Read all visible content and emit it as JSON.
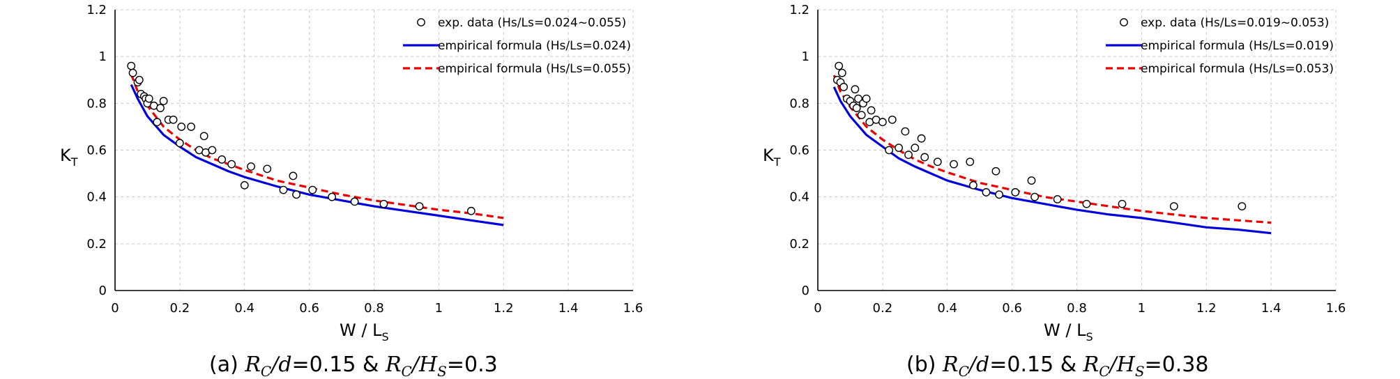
{
  "chart_data": [
    {
      "type": "scatter",
      "xlabel": "W / L",
      "xlabel_sub": "S",
      "ylabel": "K",
      "ylabel_sub": "T",
      "xlim": [
        0,
        1.6
      ],
      "ylim": [
        0,
        1.2
      ],
      "xticks": [
        "0",
        "0.2",
        "0.4",
        "0.6",
        "0.8",
        "1",
        "1.2",
        "1.4",
        "1.6"
      ],
      "yticks": [
        "0",
        "0.2",
        "0.4",
        "0.6",
        "0.8",
        "1",
        "1.2"
      ],
      "grid": true,
      "legend_position": "top-right",
      "caption": {
        "prefix": "(a) ",
        "m1": "R",
        "m1_sub": "C",
        "m2": "/d",
        "mid": "=0.15 & ",
        "m3": "R",
        "m3_sub": "C",
        "m4": "/H",
        "m4_sub": "S",
        "suffix": "=0.3"
      },
      "series": [
        {
          "name": "exp. data (Hs/Ls=0.024~0.055)",
          "kind": "points",
          "color": "#000000",
          "points": [
            [
              0.05,
              0.96
            ],
            [
              0.055,
              0.93
            ],
            [
              0.07,
              0.89
            ],
            [
              0.075,
              0.9
            ],
            [
              0.08,
              0.84
            ],
            [
              0.09,
              0.83
            ],
            [
              0.095,
              0.82
            ],
            [
              0.1,
              0.8
            ],
            [
              0.105,
              0.82
            ],
            [
              0.12,
              0.79
            ],
            [
              0.13,
              0.72
            ],
            [
              0.14,
              0.78
            ],
            [
              0.15,
              0.81
            ],
            [
              0.165,
              0.73
            ],
            [
              0.18,
              0.73
            ],
            [
              0.2,
              0.63
            ],
            [
              0.205,
              0.7
            ],
            [
              0.235,
              0.7
            ],
            [
              0.26,
              0.6
            ],
            [
              0.275,
              0.66
            ],
            [
              0.28,
              0.59
            ],
            [
              0.3,
              0.6
            ],
            [
              0.33,
              0.56
            ],
            [
              0.36,
              0.54
            ],
            [
              0.4,
              0.45
            ],
            [
              0.42,
              0.53
            ],
            [
              0.47,
              0.52
            ],
            [
              0.52,
              0.43
            ],
            [
              0.55,
              0.49
            ],
            [
              0.56,
              0.41
            ],
            [
              0.61,
              0.43
            ],
            [
              0.67,
              0.4
            ],
            [
              0.74,
              0.38
            ],
            [
              0.83,
              0.37
            ],
            [
              0.94,
              0.36
            ],
            [
              1.1,
              0.34
            ]
          ]
        },
        {
          "name": "empirical formula (Hs/Ls=0.024)",
          "kind": "line",
          "color": "#0000dd",
          "dash": false,
          "points": [
            [
              0.05,
              0.88
            ],
            [
              0.07,
              0.82
            ],
            [
              0.1,
              0.745
            ],
            [
              0.15,
              0.665
            ],
            [
              0.2,
              0.615
            ],
            [
              0.25,
              0.57
            ],
            [
              0.3,
              0.54
            ],
            [
              0.35,
              0.51
            ],
            [
              0.4,
              0.485
            ],
            [
              0.5,
              0.445
            ],
            [
              0.6,
              0.41
            ],
            [
              0.7,
              0.385
            ],
            [
              0.8,
              0.36
            ],
            [
              0.9,
              0.34
            ],
            [
              1.0,
              0.32
            ],
            [
              1.1,
              0.3
            ],
            [
              1.2,
              0.28
            ]
          ]
        },
        {
          "name": "empirical formula (Hs/Ls=0.055)",
          "kind": "line",
          "color": "#ee0000",
          "dash": true,
          "points": [
            [
              0.05,
              0.925
            ],
            [
              0.07,
              0.85
            ],
            [
              0.1,
              0.79
            ],
            [
              0.15,
              0.7
            ],
            [
              0.2,
              0.645
            ],
            [
              0.25,
              0.6
            ],
            [
              0.3,
              0.565
            ],
            [
              0.35,
              0.54
            ],
            [
              0.4,
              0.515
            ],
            [
              0.5,
              0.47
            ],
            [
              0.6,
              0.44
            ],
            [
              0.7,
              0.41
            ],
            [
              0.8,
              0.385
            ],
            [
              0.9,
              0.365
            ],
            [
              1.0,
              0.345
            ],
            [
              1.1,
              0.33
            ],
            [
              1.2,
              0.31
            ]
          ]
        }
      ]
    },
    {
      "type": "scatter",
      "xlabel": "W / L",
      "xlabel_sub": "S",
      "ylabel": "K",
      "ylabel_sub": "T",
      "xlim": [
        0,
        1.6
      ],
      "ylim": [
        0,
        1.2
      ],
      "xticks": [
        "0",
        "0.2",
        "0.4",
        "0.6",
        "0.8",
        "1",
        "1.2",
        "1.4",
        "1.6"
      ],
      "yticks": [
        "0",
        "0.2",
        "0.4",
        "0.6",
        "0.8",
        "1",
        "1.2"
      ],
      "grid": true,
      "legend_position": "top-right",
      "caption": {
        "prefix": "(b) ",
        "m1": "R",
        "m1_sub": "C",
        "m2": "/d",
        "mid": "=0.15 & ",
        "m3": "R",
        "m3_sub": "C",
        "m4": "/H",
        "m4_sub": "S",
        "suffix": "=0.38"
      },
      "series": [
        {
          "name": "exp. data (Hs/Ls=0.019~0.053)",
          "kind": "points",
          "color": "#000000",
          "points": [
            [
              0.06,
              0.9
            ],
            [
              0.065,
              0.96
            ],
            [
              0.07,
              0.89
            ],
            [
              0.075,
              0.93
            ],
            [
              0.08,
              0.87
            ],
            [
              0.09,
              0.82
            ],
            [
              0.1,
              0.81
            ],
            [
              0.11,
              0.79
            ],
            [
              0.115,
              0.86
            ],
            [
              0.12,
              0.78
            ],
            [
              0.125,
              0.82
            ],
            [
              0.135,
              0.75
            ],
            [
              0.14,
              0.8
            ],
            [
              0.15,
              0.82
            ],
            [
              0.16,
              0.72
            ],
            [
              0.165,
              0.77
            ],
            [
              0.18,
              0.73
            ],
            [
              0.2,
              0.72
            ],
            [
              0.22,
              0.6
            ],
            [
              0.23,
              0.73
            ],
            [
              0.25,
              0.61
            ],
            [
              0.27,
              0.68
            ],
            [
              0.28,
              0.58
            ],
            [
              0.3,
              0.61
            ],
            [
              0.32,
              0.65
            ],
            [
              0.33,
              0.57
            ],
            [
              0.37,
              0.55
            ],
            [
              0.42,
              0.54
            ],
            [
              0.47,
              0.55
            ],
            [
              0.48,
              0.45
            ],
            [
              0.52,
              0.42
            ],
            [
              0.55,
              0.51
            ],
            [
              0.56,
              0.41
            ],
            [
              0.61,
              0.42
            ],
            [
              0.66,
              0.47
            ],
            [
              0.67,
              0.4
            ],
            [
              0.74,
              0.39
            ],
            [
              0.83,
              0.37
            ],
            [
              0.94,
              0.37
            ],
            [
              1.1,
              0.36
            ],
            [
              1.31,
              0.36
            ]
          ]
        },
        {
          "name": "empirical formula (Hs/Ls=0.019)",
          "kind": "line",
          "color": "#0000dd",
          "dash": false,
          "points": [
            [
              0.05,
              0.87
            ],
            [
              0.07,
              0.81
            ],
            [
              0.1,
              0.745
            ],
            [
              0.15,
              0.665
            ],
            [
              0.2,
              0.615
            ],
            [
              0.25,
              0.565
            ],
            [
              0.3,
              0.53
            ],
            [
              0.35,
              0.5
            ],
            [
              0.4,
              0.47
            ],
            [
              0.5,
              0.43
            ],
            [
              0.6,
              0.395
            ],
            [
              0.7,
              0.37
            ],
            [
              0.8,
              0.345
            ],
            [
              0.9,
              0.325
            ],
            [
              1.0,
              0.31
            ],
            [
              1.1,
              0.29
            ],
            [
              1.2,
              0.27
            ],
            [
              1.3,
              0.26
            ],
            [
              1.4,
              0.245
            ]
          ]
        },
        {
          "name": "empirical formula (Hs/Ls=0.053)",
          "kind": "line",
          "color": "#ee0000",
          "dash": true,
          "points": [
            [
              0.05,
              0.92
            ],
            [
              0.07,
              0.85
            ],
            [
              0.1,
              0.785
            ],
            [
              0.15,
              0.7
            ],
            [
              0.2,
              0.645
            ],
            [
              0.25,
              0.6
            ],
            [
              0.3,
              0.56
            ],
            [
              0.35,
              0.53
            ],
            [
              0.4,
              0.505
            ],
            [
              0.5,
              0.46
            ],
            [
              0.6,
              0.43
            ],
            [
              0.7,
              0.4
            ],
            [
              0.8,
              0.38
            ],
            [
              0.9,
              0.36
            ],
            [
              1.0,
              0.34
            ],
            [
              1.1,
              0.325
            ],
            [
              1.2,
              0.31
            ],
            [
              1.3,
              0.3
            ],
            [
              1.4,
              0.29
            ]
          ]
        }
      ]
    }
  ]
}
